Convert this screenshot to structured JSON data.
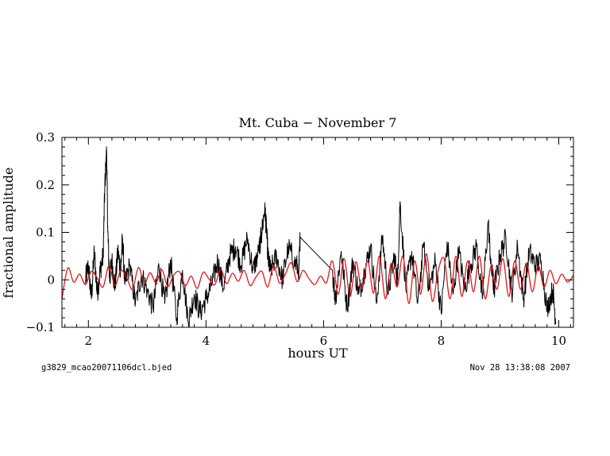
{
  "chart_data": {
    "type": "line",
    "title": "Mt. Cuba − November 7",
    "xlabel": "hours UT",
    "ylabel": "fractional amplitude",
    "xlim": [
      1.55,
      10.25
    ],
    "ylim": [
      -0.1,
      0.3
    ],
    "x_ticks": [
      2,
      4,
      6,
      8,
      10
    ],
    "x_tick_labels": [
      "2",
      "4",
      "6",
      "8",
      "10"
    ],
    "y_ticks": [
      -0.1,
      0,
      0.1,
      0.2,
      0.3
    ],
    "y_tick_labels": [
      "−0.1",
      "0",
      "0.1",
      "0.2",
      "0.3"
    ],
    "grid": false,
    "legend": "none",
    "series": [
      {
        "color": "#000000",
        "style": "noisy light curve (observed data)",
        "x": [
          1.95,
          2.0,
          2.05,
          2.1,
          2.15,
          2.2,
          2.25,
          2.28,
          2.31,
          2.33,
          2.36,
          2.4,
          2.45,
          2.5,
          2.55,
          2.58,
          2.62,
          2.7,
          2.8,
          2.9,
          3.0,
          3.1,
          3.2,
          3.3,
          3.4,
          3.5,
          3.6,
          3.7,
          3.8,
          3.9,
          4.0,
          4.1,
          4.2,
          4.3,
          4.4,
          4.5,
          4.6,
          4.7,
          4.8,
          4.9,
          4.95,
          5.0,
          5.03,
          5.06,
          5.1,
          5.2,
          5.3,
          5.4,
          5.5,
          5.58,
          5.6,
          6.15,
          6.2,
          6.3,
          6.4,
          6.5,
          6.6,
          6.7,
          6.8,
          6.9,
          7.0,
          7.1,
          7.2,
          7.26,
          7.3,
          7.4,
          7.5,
          7.6,
          7.7,
          7.8,
          7.9,
          8.0,
          8.1,
          8.2,
          8.3,
          8.4,
          8.5,
          8.6,
          8.7,
          8.8,
          8.85,
          8.9,
          9.0,
          9.1,
          9.2,
          9.3,
          9.4,
          9.5,
          9.6,
          9.7,
          9.8,
          9.9,
          9.95
        ],
        "y": [
          0.0,
          0.03,
          -0.04,
          0.06,
          -0.03,
          0.02,
          0.05,
          0.2,
          0.27,
          0.1,
          0.0,
          0.04,
          -0.02,
          0.06,
          0.02,
          0.09,
          -0.01,
          0.03,
          -0.05,
          0.01,
          -0.02,
          -0.06,
          0.03,
          -0.05,
          0.04,
          -0.08,
          0.02,
          -0.09,
          -0.03,
          -0.07,
          -0.04,
          -0.01,
          0.04,
          -0.02,
          0.05,
          0.07,
          0.03,
          0.09,
          0.02,
          0.06,
          0.1,
          0.155,
          0.1,
          0.04,
          0.02,
          0.05,
          0.0,
          0.07,
          0.04,
          0.02,
          0.09,
          0.02,
          -0.04,
          0.06,
          -0.06,
          0.04,
          -0.03,
          0.02,
          0.07,
          -0.05,
          0.09,
          -0.03,
          0.05,
          0.0,
          0.165,
          -0.02,
          0.06,
          -0.05,
          0.07,
          -0.02,
          0.04,
          -0.07,
          0.08,
          -0.03,
          0.06,
          -0.02,
          0.03,
          0.07,
          -0.04,
          0.12,
          0.03,
          -0.02,
          0.05,
          0.09,
          -0.03,
          0.07,
          -0.04,
          0.06,
          0.03,
          0.04,
          -0.06,
          -0.02,
          -0.09
        ]
      },
      {
        "color": "#e0161b",
        "style": "smooth oscillating fit (model)",
        "x": [
          1.55,
          1.65,
          1.75,
          1.85,
          1.95,
          2.05,
          2.15,
          2.25,
          2.35,
          2.45,
          2.55,
          2.65,
          2.75,
          2.85,
          2.95,
          3.05,
          3.15,
          3.25,
          3.35,
          3.45,
          3.55,
          3.65,
          3.75,
          3.85,
          3.95,
          4.05,
          4.15,
          4.25,
          4.35,
          4.45,
          4.55,
          4.65,
          4.75,
          4.85,
          4.95,
          5.05,
          5.15,
          5.25,
          5.35,
          5.45,
          5.55,
          5.65,
          5.75,
          5.85,
          5.95,
          6.05,
          6.15,
          6.25,
          6.35,
          6.45,
          6.55,
          6.65,
          6.75,
          6.85,
          6.95,
          7.05,
          7.15,
          7.25,
          7.35,
          7.45,
          7.55,
          7.65,
          7.75,
          7.85,
          7.95,
          8.05,
          8.15,
          8.25,
          8.35,
          8.45,
          8.55,
          8.65,
          8.75,
          8.85,
          8.95,
          9.05,
          9.15,
          9.25,
          9.35,
          9.45,
          9.55,
          9.65,
          9.75,
          9.85,
          9.95,
          10.05,
          10.15,
          10.25
        ],
        "y": [
          -0.04,
          0.025,
          -0.005,
          0.012,
          -0.01,
          0.018,
          0.004,
          -0.015,
          0.03,
          -0.012,
          0.02,
          0.005,
          -0.02,
          0.026,
          -0.008,
          0.015,
          -0.006,
          0.021,
          -0.014,
          0.01,
          0.017,
          -0.012,
          0.008,
          -0.018,
          0.016,
          0.002,
          -0.01,
          0.022,
          -0.008,
          0.014,
          -0.003,
          0.02,
          -0.012,
          0.006,
          0.018,
          -0.015,
          0.03,
          -0.007,
          0.012,
          0.036,
          -0.004,
          0.02,
          0.003,
          -0.01,
          0.008,
          -0.006,
          0.04,
          -0.03,
          0.045,
          -0.035,
          0.038,
          -0.02,
          0.04,
          -0.028,
          0.05,
          -0.04,
          0.035,
          -0.015,
          0.05,
          -0.05,
          0.04,
          -0.03,
          0.055,
          -0.045,
          0.02,
          0.045,
          -0.04,
          0.05,
          -0.035,
          0.04,
          -0.025,
          0.05,
          -0.04,
          0.03,
          -0.02,
          0.045,
          -0.035,
          0.04,
          -0.02,
          0.035,
          -0.025,
          0.03,
          -0.015,
          0.02,
          -0.008,
          0.012,
          -0.005,
          0.01
        ]
      }
    ]
  },
  "footer": {
    "left": "g3829_mcao20071106dcl.bjed",
    "right": "Nov 28 13:38:08 2007"
  }
}
